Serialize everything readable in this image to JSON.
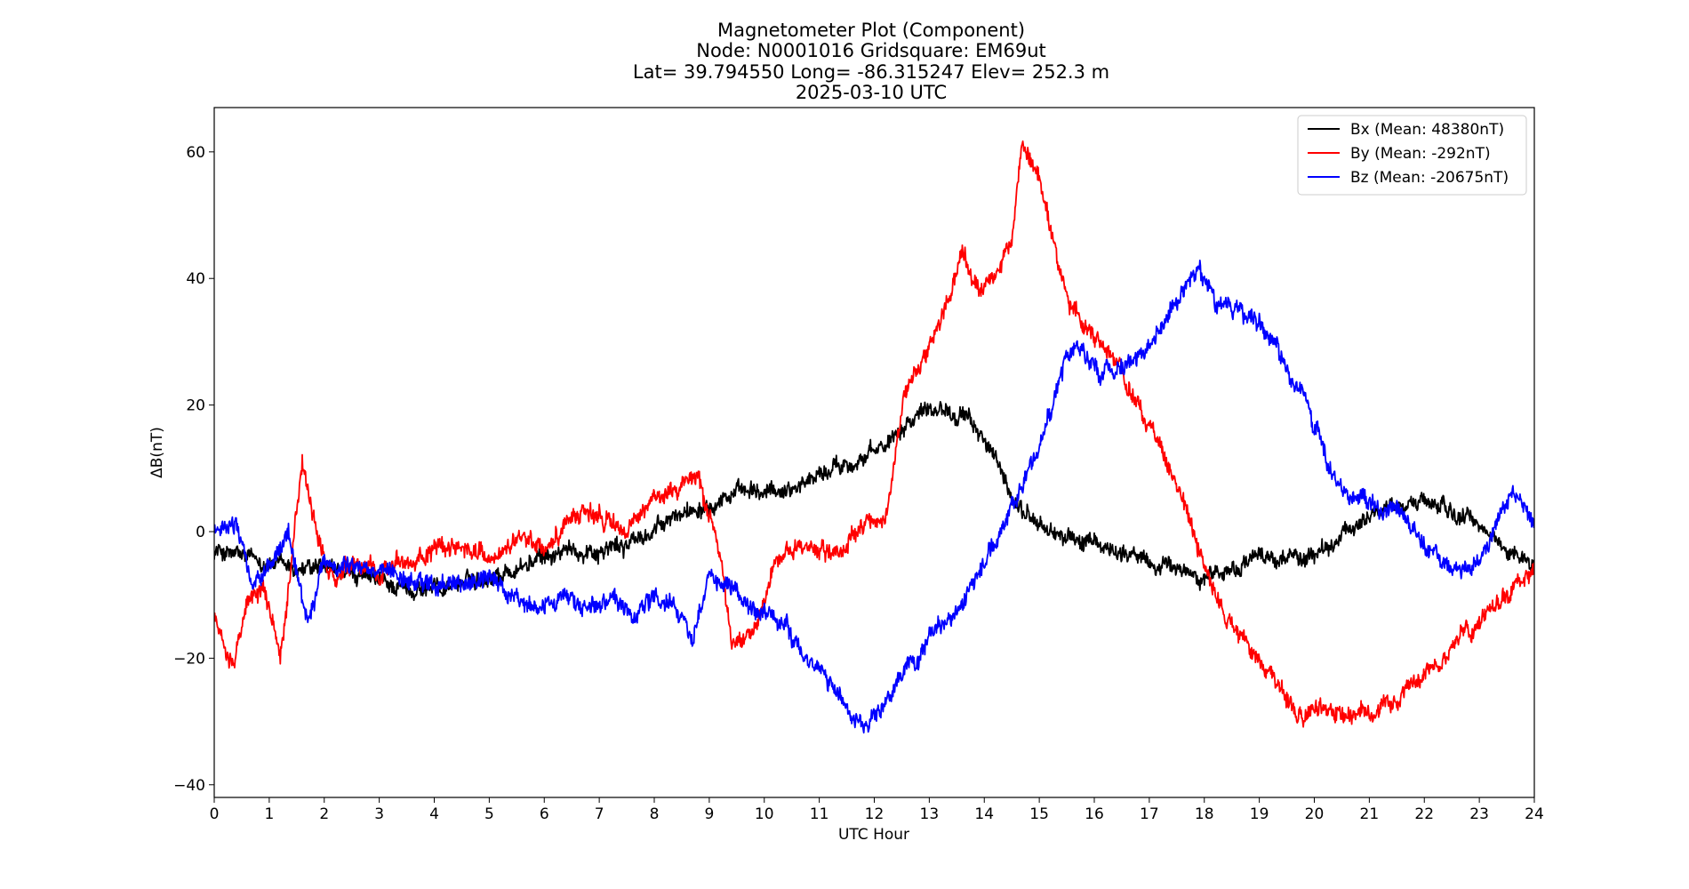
{
  "chart_data": {
    "type": "line",
    "title": [
      "Magnetometer Plot (Component)",
      "Node:  N0001016     Gridsquare:  EM69ut",
      "Lat= 39.794550    Long= -86.315247    Elev= 252.3 m",
      "2025-03-10  UTC"
    ],
    "xlabel": "UTC Hour",
    "ylabel": "ΔB(nT)",
    "xlim": [
      0,
      24
    ],
    "ylim": [
      -42,
      67
    ],
    "xticks": [
      0,
      1,
      2,
      3,
      4,
      5,
      6,
      7,
      8,
      9,
      10,
      11,
      12,
      13,
      14,
      15,
      16,
      17,
      18,
      19,
      20,
      21,
      22,
      23,
      24
    ],
    "yticks": [
      -40,
      -20,
      0,
      20,
      40,
      60
    ],
    "ytick_labels": [
      "−40",
      "−20",
      "0",
      "20",
      "40",
      "60"
    ],
    "grid": false,
    "legend_position": "top-right",
    "series": [
      {
        "name": "Bx (Mean: 48380nT)",
        "color": "#000000",
        "noise": 1.2,
        "x": [
          0,
          0.5,
          1,
          1.5,
          2,
          2.5,
          3,
          3.5,
          4,
          4.5,
          5,
          5.5,
          6,
          6.5,
          7,
          7.5,
          8,
          8.5,
          9,
          9.5,
          10,
          10.5,
          11,
          11.5,
          12,
          12.5,
          13,
          13.5,
          14,
          14.5,
          15,
          15.5,
          16,
          16.5,
          17,
          17.5,
          18,
          18.5,
          19,
          19.5,
          20,
          20.5,
          21,
          21.5,
          22,
          22.5,
          23,
          23.5,
          24
        ],
        "y": [
          -3,
          -4,
          -5,
          -6,
          -6,
          -7,
          -8,
          -9,
          -9,
          -8,
          -7,
          -6,
          -4,
          -3,
          -3,
          -2,
          0,
          3,
          5,
          6,
          6,
          7,
          9,
          11,
          12,
          17,
          20,
          19,
          15,
          5,
          1,
          -1,
          -2,
          -3,
          -5,
          -6,
          -7,
          -6,
          -4,
          -4,
          -4,
          -1,
          3,
          4,
          5,
          3,
          1,
          -3,
          -5
        ]
      },
      {
        "name": "By (Mean: -292nT)",
        "color": "#ff0000",
        "noise": 1.3,
        "x": [
          0,
          0.15,
          0.35,
          0.6,
          0.9,
          1.2,
          1.4,
          1.6,
          1.9,
          2.2,
          2.5,
          3,
          3.5,
          4,
          4.5,
          5,
          5.3,
          5.7,
          6,
          6.3,
          6.7,
          7,
          7.5,
          8,
          8.5,
          8.8,
          9.2,
          9.4,
          9.8,
          10.2,
          10.6,
          11,
          11.3,
          11.8,
          12.2,
          12.6,
          13,
          13.2,
          13.6,
          13.9,
          14.3,
          14.5,
          14.7,
          15,
          15.3,
          15.6,
          16,
          16.4,
          16.8,
          17.2,
          17.6,
          18,
          18.5,
          19,
          19.5,
          19.8,
          20,
          20.5,
          21,
          21.5,
          22,
          22.5,
          23,
          23.5,
          24
        ],
        "y": [
          -13,
          -18,
          -20,
          -11,
          -9,
          -19,
          -5,
          11,
          -3,
          -8,
          -6,
          -6,
          -5,
          -3,
          -2,
          -4,
          -3,
          -1,
          -3,
          0,
          4,
          2,
          0,
          5,
          8,
          9,
          -3,
          -18,
          -15,
          -5,
          -2,
          -3,
          -3,
          0,
          3,
          23,
          30,
          33,
          44,
          37,
          42,
          47,
          61,
          56,
          44,
          35,
          30,
          26,
          20,
          13,
          5,
          -6,
          -15,
          -20,
          -26,
          -30,
          -28,
          -29,
          -28,
          -27,
          -23,
          -18,
          -14,
          -10,
          -6
        ]
      },
      {
        "name": "Bz (Mean: -20675nT)",
        "color": "#0000ff",
        "noise": 1.3,
        "x": [
          0,
          0.4,
          0.7,
          1,
          1.35,
          1.7,
          2,
          2.5,
          3,
          3.5,
          4,
          4.5,
          5,
          5.4,
          5.8,
          6.3,
          6.8,
          7.2,
          7.6,
          8,
          8.5,
          8.7,
          9,
          9.4,
          9.7,
          10,
          10.4,
          10.8,
          11.2,
          11.5,
          11.8,
          12.2,
          12.6,
          13,
          13.4,
          13.8,
          14.2,
          14.5,
          15,
          15.3,
          15.5,
          15.8,
          16.1,
          16.5,
          17,
          17.5,
          17.9,
          18.2,
          18.6,
          19,
          19.4,
          19.8,
          20.2,
          20.5,
          21,
          21.5,
          22,
          22.5,
          23,
          23.3,
          23.6,
          24
        ],
        "y": [
          0,
          1,
          -9,
          -6,
          0,
          -14,
          -5,
          -5,
          -6,
          -8,
          -8,
          -9,
          -7,
          -10,
          -13,
          -10,
          -12,
          -10,
          -14,
          -10,
          -13,
          -17,
          -6,
          -9,
          -12,
          -13,
          -16,
          -20,
          -24,
          -28,
          -31,
          -27,
          -22,
          -17,
          -14,
          -8,
          -2,
          5,
          13,
          22,
          28,
          29,
          25,
          26,
          29,
          36,
          42,
          36,
          35,
          33,
          28,
          22,
          12,
          6,
          5,
          3,
          -2,
          -6,
          -5,
          1,
          7,
          2
        ]
      }
    ]
  }
}
